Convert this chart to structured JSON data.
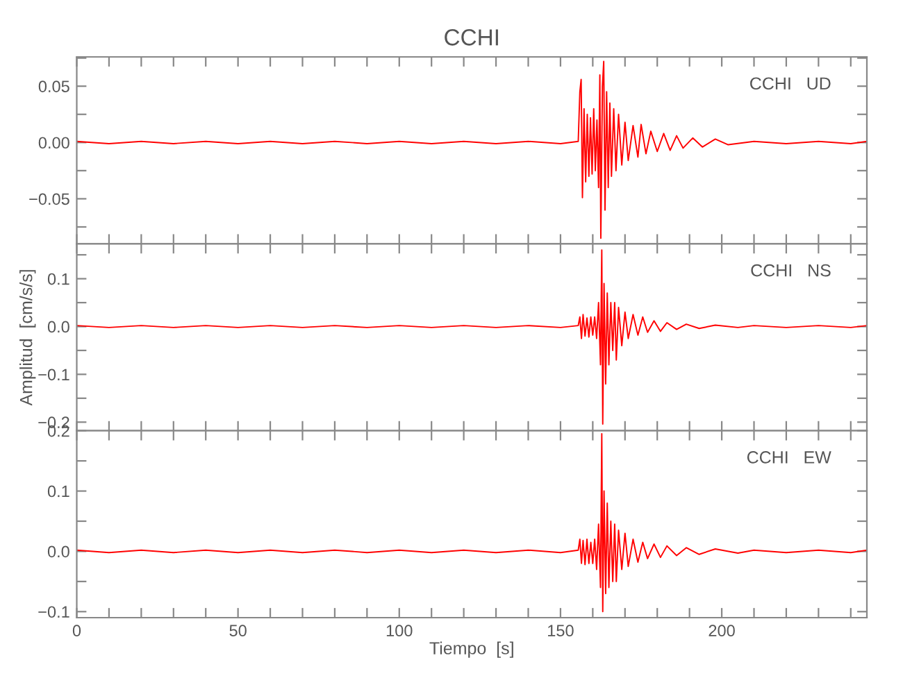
{
  "chart_data": [
    {
      "type": "line",
      "title": "CCHI",
      "annotations": [
        "CCHI   UD"
      ],
      "tick_labels": "y",
      "grid": false,
      "legend": false,
      "xlim": [
        0,
        245
      ],
      "ylim": [
        -0.09,
        0.076
      ],
      "xticks": [
        0,
        {
          "value": 10,
          "label": null
        },
        {
          "value": 20,
          "label": null
        },
        {
          "value": 30,
          "label": null
        },
        {
          "value": 40,
          "label": null
        },
        50,
        {
          "value": 60,
          "label": null
        },
        {
          "value": 70,
          "label": null
        },
        {
          "value": 80,
          "label": null
        },
        {
          "value": 90,
          "label": null
        },
        100,
        {
          "value": 110,
          "label": null
        },
        {
          "value": 120,
          "label": null
        },
        {
          "value": 130,
          "label": null
        },
        {
          "value": 140,
          "label": null
        },
        150,
        {
          "value": 160,
          "label": null
        },
        {
          "value": 170,
          "label": null
        },
        {
          "value": 180,
          "label": null
        },
        {
          "value": 190,
          "label": null
        },
        200,
        {
          "value": 210,
          "label": null
        },
        {
          "value": 220,
          "label": null
        },
        {
          "value": 230,
          "label": null
        },
        {
          "value": 240,
          "label": null
        }
      ],
      "yticks": [
        {
          "value": -0.075,
          "label": null
        },
        {
          "value": -0.05,
          "label": "−0.05"
        },
        {
          "value": -0.025,
          "label": null
        },
        {
          "value": 0,
          "label": "0.00"
        },
        {
          "value": 0.025,
          "label": null
        },
        {
          "value": 0.05,
          "label": "0.05"
        },
        {
          "value": 0.075,
          "label": null
        }
      ],
      "series": [
        {
          "color": "#ff0000",
          "x": [
            0,
            10,
            20,
            30,
            40,
            50,
            60,
            70,
            80,
            90,
            100,
            110,
            120,
            130,
            140,
            150,
            155.5,
            156.0,
            156.4,
            156.8,
            157.3,
            157.8,
            158.3,
            158.8,
            159.3,
            159.8,
            160.3,
            160.8,
            161.3,
            161.8,
            162.2,
            162.5,
            163.0,
            163.4,
            163.8,
            164.3,
            164.8,
            165.3,
            165.8,
            166.5,
            167.2,
            168,
            169,
            170,
            171,
            172.5,
            174,
            175,
            176.5,
            178,
            180,
            182,
            184,
            186,
            188,
            191,
            194,
            198,
            202,
            210,
            220,
            230,
            240,
            245
          ],
          "values": [
            0.001,
            -0.001,
            0.001,
            -0.001,
            0.001,
            -0.001,
            0.001,
            -0.001,
            0.001,
            -0.001,
            0.001,
            -0.001,
            0.001,
            -0.001,
            0.001,
            -0.001,
            0.001,
            0.045,
            0.056,
            -0.049,
            0.03,
            -0.035,
            0.025,
            -0.03,
            0.022,
            -0.028,
            0.03,
            -0.025,
            0.02,
            -0.04,
            0.06,
            -0.085,
            0.05,
            0.072,
            -0.06,
            0.045,
            -0.04,
            0.035,
            -0.03,
            0.03,
            -0.025,
            0.025,
            -0.02,
            0.018,
            -0.016,
            0.015,
            -0.013,
            0.016,
            -0.01,
            0.01,
            -0.008,
            0.008,
            -0.007,
            0.006,
            -0.005,
            0.004,
            -0.004,
            0.003,
            -0.002,
            0.001,
            -0.001,
            0.001,
            -0.001,
            0.001
          ]
        }
      ]
    },
    {
      "type": "line",
      "ylabel": "Amplitud  [cm/s/s]",
      "annotations": [
        "CCHI   NS"
      ],
      "tick_labels": "y",
      "grid": false,
      "legend": false,
      "xlim": [
        0,
        245
      ],
      "ylim": [
        -0.218,
        0.173
      ],
      "xticks": [
        0,
        {
          "value": 10,
          "label": null
        },
        {
          "value": 20,
          "label": null
        },
        {
          "value": 30,
          "label": null
        },
        {
          "value": 40,
          "label": null
        },
        50,
        {
          "value": 60,
          "label": null
        },
        {
          "value": 70,
          "label": null
        },
        {
          "value": 80,
          "label": null
        },
        {
          "value": 90,
          "label": null
        },
        100,
        {
          "value": 110,
          "label": null
        },
        {
          "value": 120,
          "label": null
        },
        {
          "value": 130,
          "label": null
        },
        {
          "value": 140,
          "label": null
        },
        150,
        {
          "value": 160,
          "label": null
        },
        {
          "value": 170,
          "label": null
        },
        {
          "value": 180,
          "label": null
        },
        {
          "value": 190,
          "label": null
        },
        200,
        {
          "value": 210,
          "label": null
        },
        {
          "value": 220,
          "label": null
        },
        {
          "value": 230,
          "label": null
        },
        {
          "value": 240,
          "label": null
        }
      ],
      "yticks": [
        {
          "value": -0.2,
          "label": "−0.2"
        },
        {
          "value": -0.15,
          "label": null
        },
        {
          "value": -0.1,
          "label": "−0.1"
        },
        {
          "value": -0.05,
          "label": null
        },
        {
          "value": 0,
          "label": "0.0"
        },
        {
          "value": 0.05,
          "label": null
        },
        {
          "value": 0.1,
          "label": "0.1"
        },
        {
          "value": 0.15,
          "label": null
        }
      ],
      "series": [
        {
          "color": "#ff0000",
          "x": [
            0,
            10,
            20,
            30,
            40,
            50,
            60,
            70,
            80,
            90,
            100,
            110,
            120,
            130,
            140,
            150,
            155.5,
            156.0,
            156.5,
            157,
            157.6,
            158.2,
            158.8,
            159.4,
            160,
            160.6,
            161.2,
            161.8,
            162.4,
            162.8,
            163.1,
            163.5,
            164,
            164.5,
            165,
            165.6,
            166.2,
            166.8,
            167.3,
            168,
            169,
            170,
            171,
            172.5,
            174,
            175.5,
            177,
            179,
            181,
            183,
            186,
            189,
            193,
            198,
            205,
            210,
            220,
            230,
            240,
            245
          ],
          "values": [
            0.002,
            -0.002,
            0.002,
            -0.002,
            0.002,
            -0.002,
            0.002,
            -0.002,
            0.002,
            -0.002,
            0.002,
            -0.002,
            0.002,
            -0.002,
            0.002,
            -0.002,
            0.002,
            0.02,
            -0.025,
            0.025,
            -0.02,
            0.018,
            -0.022,
            0.02,
            -0.018,
            0.02,
            -0.025,
            0.05,
            -0.08,
            0.16,
            -0.204,
            0.09,
            -0.12,
            0.07,
            -0.08,
            0.05,
            -0.05,
            0.05,
            -0.07,
            0.04,
            -0.04,
            0.03,
            -0.025,
            0.025,
            -0.018,
            0.02,
            -0.012,
            0.012,
            -0.01,
            0.008,
            -0.006,
            0.005,
            -0.004,
            0.003,
            -0.002,
            0.002,
            -0.002,
            0.002,
            -0.002,
            0.002
          ]
        }
      ]
    },
    {
      "type": "line",
      "xlabel": "Tiempo  [s]",
      "annotations": [
        "CCHI   EW"
      ],
      "grid": false,
      "legend": false,
      "xlim": [
        0,
        245
      ],
      "ylim": [
        -0.11,
        0.2
      ],
      "xticks": [
        0,
        {
          "value": 10,
          "label": null
        },
        {
          "value": 20,
          "label": null
        },
        {
          "value": 30,
          "label": null
        },
        {
          "value": 40,
          "label": null
        },
        50,
        {
          "value": 60,
          "label": null
        },
        {
          "value": 70,
          "label": null
        },
        {
          "value": 80,
          "label": null
        },
        {
          "value": 90,
          "label": null
        },
        100,
        {
          "value": 110,
          "label": null
        },
        {
          "value": 120,
          "label": null
        },
        {
          "value": 130,
          "label": null
        },
        {
          "value": 140,
          "label": null
        },
        150,
        {
          "value": 160,
          "label": null
        },
        {
          "value": 170,
          "label": null
        },
        {
          "value": 180,
          "label": null
        },
        {
          "value": 190,
          "label": null
        },
        200,
        {
          "value": 210,
          "label": null
        },
        {
          "value": 220,
          "label": null
        },
        {
          "value": 230,
          "label": null
        },
        {
          "value": 240,
          "label": null
        }
      ],
      "yticks": [
        {
          "value": -0.1,
          "label": "−0.1"
        },
        {
          "value": -0.05,
          "label": null
        },
        {
          "value": 0,
          "label": "0.0"
        },
        {
          "value": 0.05,
          "label": null
        },
        {
          "value": 0.1,
          "label": "0.1"
        },
        {
          "value": 0.15,
          "label": null
        },
        {
          "value": 0.2,
          "label": "0.2"
        }
      ],
      "series": [
        {
          "color": "#ff0000",
          "x": [
            0,
            10,
            20,
            30,
            40,
            50,
            60,
            70,
            80,
            90,
            100,
            110,
            120,
            130,
            140,
            150,
            155.5,
            156,
            156.5,
            157,
            157.6,
            158.2,
            158.8,
            159.4,
            160,
            160.6,
            161.2,
            161.8,
            162.4,
            162.8,
            163.1,
            163.5,
            164,
            164.5,
            165,
            165.6,
            166.2,
            166.8,
            167.3,
            168,
            169,
            170,
            171,
            172.5,
            174,
            175.5,
            177,
            179,
            181,
            183,
            186,
            189,
            193,
            198,
            205,
            210,
            220,
            230,
            240,
            245
          ],
          "values": [
            0.002,
            -0.002,
            0.002,
            -0.002,
            0.002,
            -0.002,
            0.002,
            -0.002,
            0.002,
            -0.002,
            0.002,
            -0.002,
            0.002,
            -0.002,
            0.002,
            -0.002,
            0.002,
            0.02,
            -0.02,
            0.018,
            -0.022,
            0.02,
            -0.02,
            0.015,
            -0.02,
            0.02,
            -0.03,
            0.045,
            -0.06,
            0.195,
            -0.1,
            0.1,
            -0.07,
            0.08,
            -0.06,
            0.05,
            -0.05,
            0.045,
            -0.05,
            0.035,
            -0.03,
            0.03,
            -0.025,
            0.02,
            -0.018,
            0.015,
            -0.012,
            0.012,
            -0.01,
            0.009,
            -0.007,
            0.006,
            -0.005,
            0.004,
            -0.003,
            0.002,
            -0.002,
            0.002,
            -0.002,
            0.002
          ]
        }
      ]
    }
  ]
}
